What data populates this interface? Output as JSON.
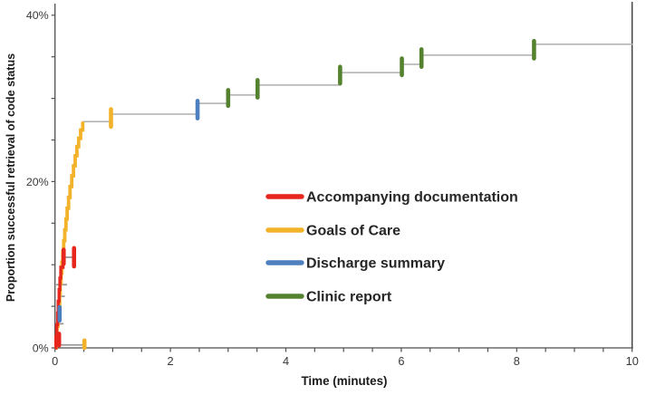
{
  "chart_data": {
    "type": "line",
    "subtype": "kaplan-meier-step",
    "title": "",
    "xlabel": "Time (minutes)",
    "ylabel": "Proportion successful retrieval of code status",
    "xlim": [
      0,
      10
    ],
    "ylim": [
      0,
      40
    ],
    "grid": false,
    "x_tick_labels": [
      "0",
      "2",
      "4",
      "6",
      "8",
      "10"
    ],
    "x_tick_values": [
      0,
      2,
      4,
      6,
      8,
      10
    ],
    "x_minor_tick_step": 0.5,
    "y_tick_labels": [
      "0%",
      "20%",
      "40%"
    ],
    "y_tick_values": [
      0,
      20,
      40
    ],
    "y_minor_tick_step": 5,
    "legend_position": "center-right",
    "legend": [
      {
        "label": "Accompanying documentation",
        "series": "accompanying"
      },
      {
        "label": "Goals of Care",
        "series": "goals"
      },
      {
        "label": "Discharge summary",
        "series": "discharge"
      },
      {
        "label": "Clinic report",
        "series": "clinic"
      }
    ],
    "palette": {
      "accompanying": "#e7261d",
      "goals": "#f2b32a",
      "discharge": "#4e7fbe",
      "clinic": "#55822f",
      "connector_gray": "#aeaeae",
      "tick_gray": "#9a9a9a"
    },
    "series": [
      {
        "name": "Goals of Care",
        "key": "goals",
        "steps": [
          [
            0,
            0
          ],
          [
            0.02,
            1.3
          ],
          [
            0.035,
            2.6
          ],
          [
            0.05,
            3.9
          ],
          [
            0.065,
            5.2
          ],
          [
            0.08,
            6.5
          ],
          [
            0.09,
            7.8
          ],
          [
            0.105,
            9.0
          ],
          [
            0.12,
            10.3
          ],
          [
            0.135,
            11.6
          ],
          [
            0.15,
            12.9
          ],
          [
            0.17,
            14.2
          ],
          [
            0.19,
            15.5
          ],
          [
            0.21,
            16.8
          ],
          [
            0.235,
            18.1
          ],
          [
            0.26,
            19.4
          ],
          [
            0.29,
            20.7
          ],
          [
            0.32,
            21.9
          ],
          [
            0.35,
            23.1
          ],
          [
            0.38,
            24.2
          ],
          [
            0.41,
            25.2
          ],
          [
            0.445,
            26.2
          ],
          [
            0.48,
            27.2
          ]
        ]
      },
      {
        "name": "Accompanying documentation",
        "key": "accompanying",
        "steps": [
          [
            0,
            0
          ],
          [
            0.015,
            1.4
          ],
          [
            0.03,
            2.8
          ],
          [
            0.045,
            4.2
          ],
          [
            0.055,
            5.6
          ],
          [
            0.07,
            7.0
          ],
          [
            0.085,
            8.4
          ],
          [
            0.1,
            9.7
          ],
          [
            0.14,
            11.0
          ]
        ],
        "end_t": 0.16
      }
    ],
    "overall_curve": {
      "comment_role": "thin gray combined curve continuing after 0.5 min",
      "points": [
        [
          0.48,
          27.2
        ],
        [
          0.97,
          28.1
        ],
        [
          2.47,
          29.4
        ],
        [
          3.0,
          30.4
        ],
        [
          3.51,
          31.6
        ],
        [
          4.94,
          33.1
        ],
        [
          6.01,
          34.1
        ],
        [
          6.35,
          35.2
        ],
        [
          8.3,
          36.5
        ]
      ],
      "end_t": 10.01
    },
    "event_marks": [
      {
        "t": 0.97,
        "p1": 26.6,
        "p2": 28.7,
        "series": "goals"
      },
      {
        "t": 2.47,
        "p1": 27.6,
        "p2": 29.7,
        "series": "discharge"
      },
      {
        "t": 3.0,
        "p1": 29.1,
        "p2": 31.0,
        "series": "clinic"
      },
      {
        "t": 3.51,
        "p1": 30.1,
        "p2": 32.2,
        "series": "clinic"
      },
      {
        "t": 4.94,
        "p1": 31.8,
        "p2": 33.8,
        "series": "clinic"
      },
      {
        "t": 6.01,
        "p1": 32.8,
        "p2": 34.8,
        "series": "clinic"
      },
      {
        "t": 6.35,
        "p1": 33.8,
        "p2": 35.9,
        "series": "clinic"
      },
      {
        "t": 8.3,
        "p1": 34.8,
        "p2": 36.9,
        "series": "clinic"
      },
      {
        "t": 0.08,
        "p1": 3.3,
        "p2": 4.9,
        "series": "discharge"
      },
      {
        "t": 0.15,
        "p1": 10.1,
        "p2": 11.8,
        "series": "accompanying"
      },
      {
        "t": 0.33,
        "p1": 9.8,
        "p2": 12.0,
        "series": "accompanying"
      },
      {
        "t": 0.07,
        "p1": 0.3,
        "p2": 1.7,
        "series": "accompanying"
      },
      {
        "t": 0.51,
        "p1": 0.0,
        "p2": 0.9,
        "series": "goals"
      }
    ],
    "gray_segments": [
      {
        "t1": 0.16,
        "t2": 0.33,
        "p": 10.9
      },
      {
        "t1": 0.02,
        "t2": 0.21,
        "p": 7.6
      },
      {
        "t1": 0.05,
        "t2": 0.17,
        "p": 6.2
      },
      {
        "t1": 0.02,
        "t2": 0.15,
        "p": 2.9
      },
      {
        "t1": 0.06,
        "t2": 0.51,
        "p": 0.35
      }
    ]
  }
}
